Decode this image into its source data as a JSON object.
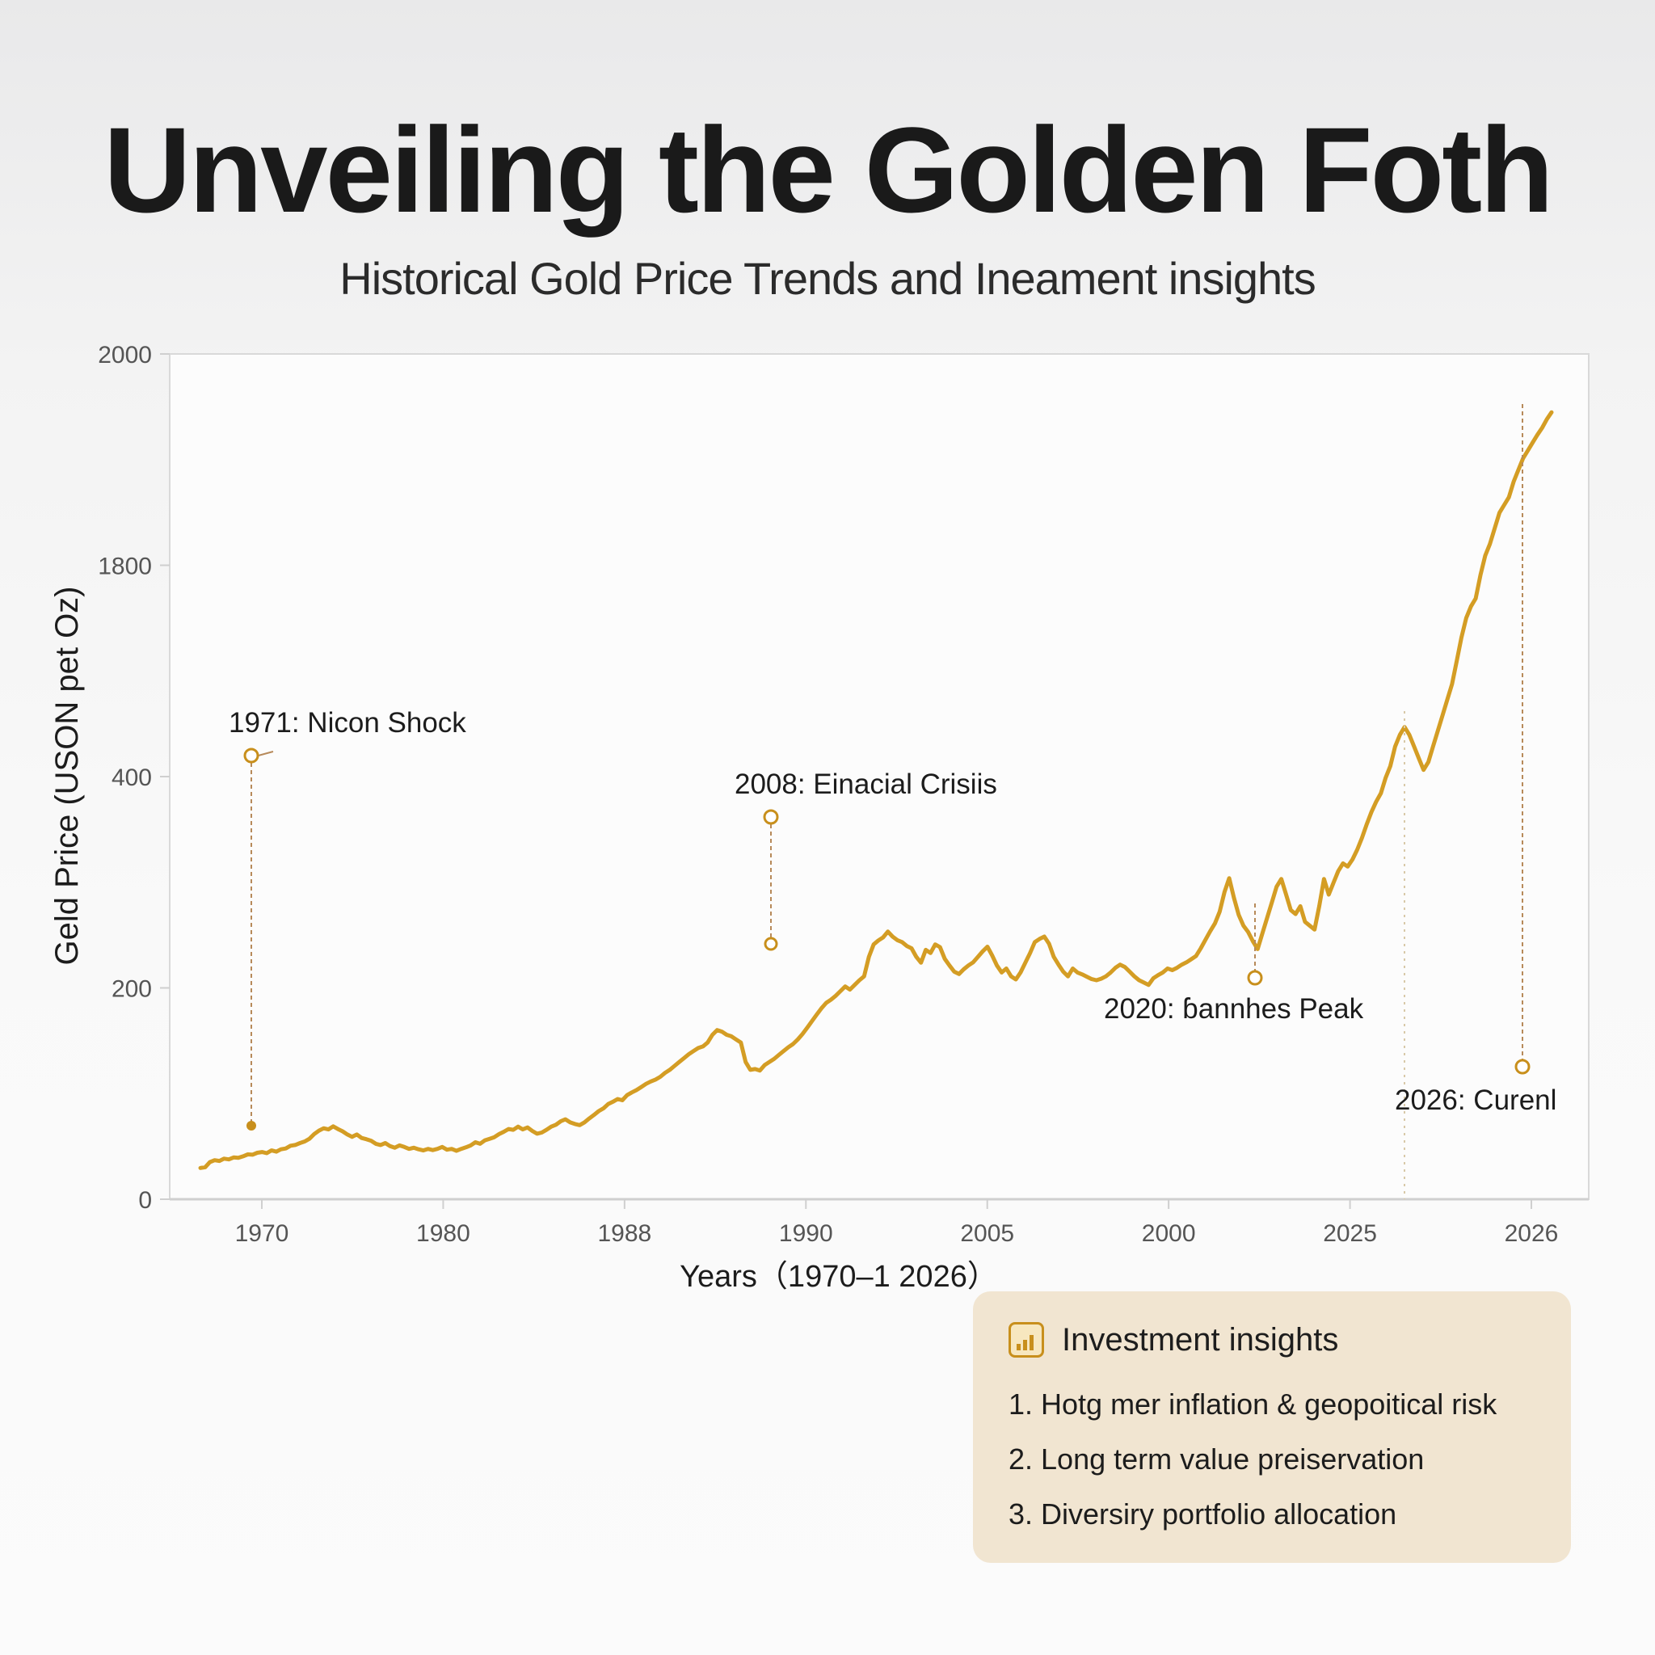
{
  "title": "Unveiling the Golden Foth",
  "subtitle": "Historical Gold Price Trends and Ineament insights",
  "colors": {
    "line": "#d49d24",
    "marker": "#c88f1c",
    "leader": "#b78a5a",
    "panel": "#f1e5d1"
  },
  "chart_data": {
    "type": "line",
    "xlabel": "Years（1970–1 2026）",
    "ylabel": "Geld Price (USON pet Oz)",
    "x_ticks": [
      "1970",
      "1980",
      "1988",
      "1990",
      "2005",
      "2000",
      "2025",
      "2026"
    ],
    "y_ticks": [
      "0",
      "200",
      "400",
      "1800",
      "2000"
    ],
    "grid": false,
    "series": [
      {
        "values": [
          18,
          20,
          33,
          38,
          36,
          42,
          40,
          45,
          44,
          48,
          53,
          52,
          57,
          59,
          56,
          63,
          60,
          66,
          68,
          75,
          77,
          82,
          86,
          93,
          105,
          114,
          120,
          117,
          125,
          118,
          112,
          104,
          98,
          104,
          95,
          92,
          88,
          80,
          77,
          82,
          74,
          70,
          76,
          72,
          67,
          70,
          66,
          63,
          67,
          64,
          67,
          72,
          65,
          67,
          62,
          67,
          71,
          76,
          84,
          80,
          89,
          93,
          97,
          105,
          111,
          118,
          116,
          124,
          117,
          122,
          113,
          106,
          109,
          116,
          124,
          129,
          138,
          143,
          135,
          131,
          128,
          135,
          145,
          154,
          164,
          171,
          182,
          188,
          195,
          192,
          205,
          212,
          218,
          226,
          234,
          240,
          245,
          252,
          262,
          270,
          280,
          290,
          300,
          310,
          318,
          326,
          330,
          340,
          360,
          372,
          368,
          360,
          356,
          348,
          340,
          290,
          270,
          272,
          268,
          282,
          290,
          298,
          308,
          318,
          328,
          336,
          348,
          362,
          378,
          395,
          412,
          428,
          442,
          450,
          460,
          472,
          484,
          476,
          488,
          500,
          510,
          560,
          592,
          602,
          610,
          625,
          612,
          603,
          598,
          588,
          582,
          560,
          545,
          578,
          570,
          592,
          585,
          555,
          538,
          522,
          516,
          528,
          538,
          546,
          560,
          574,
          586,
          564,
          538,
          520,
          530,
          510,
          502,
          520,
          545,
          570,
          598,
          606,
          612,
          594,
          560,
          540,
          522,
          510,
          530,
          520,
          515,
          509,
          503,
          500,
          504,
          510,
          520,
          532,
          540,
          534,
          522,
          510,
          500,
          494,
          488,
          505,
          513,
          520,
          530,
          526,
          532,
          540,
          546,
          554,
          562,
          582,
          604,
          626,
          646,
          676,
          726,
          762,
          712,
          668,
          640,
          624,
          600,
          580,
          620,
          660,
          700,
          740,
          760,
          720,
          680,
          670,
          690,
          650,
          640,
          630,
          690,
          760,
          720,
          750,
          780,
          800,
          792,
          810,
          835,
          865,
          900,
          932,
          958,
          980,
          1020,
          1050,
          1100,
          1130,
          1150,
          1130,
          1100,
          1070,
          1040,
          1060,
          1100,
          1140,
          1180,
          1220,
          1260,
          1320,
          1380,
          1430,
          1460,
          1480,
          1540,
          1590,
          1620,
          1660,
          1700,
          1720,
          1740,
          1780,
          1810,
          1840,
          1860,
          1880,
          1900,
          1918,
          1940,
          1958
        ]
      }
    ],
    "annotations": [
      {
        "label": "1971: Nicon Shock",
        "year": "1971"
      },
      {
        "label": "2008: Einacial Crisiis",
        "year": "2008"
      },
      {
        "label": "2020: ɓannhes Peak",
        "year": "2020"
      },
      {
        "label": "2026: Curenl",
        "year": "2026"
      }
    ]
  },
  "insights": {
    "title": "Investment insights",
    "icon": "bar-chart-icon",
    "items": [
      "1.  Hotg mer inflation & geopoitical risk",
      "2. Long term value preiservation",
      "3. Diversiry portfolio allocation"
    ]
  }
}
